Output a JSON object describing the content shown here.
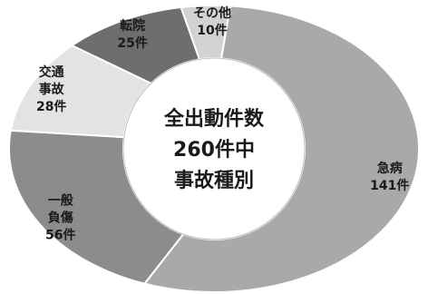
{
  "chart_data": {
    "type": "pie",
    "donut": true,
    "center_lines": [
      "全出動件数",
      "260件中",
      "事故種別"
    ],
    "slices": [
      {
        "category": "急病",
        "value": 141,
        "label_lines": [
          "急病",
          "141件"
        ],
        "color": "#a9a9a9"
      },
      {
        "category": "一般負傷",
        "value": 56,
        "label_lines": [
          "一般",
          "負傷",
          "56件"
        ],
        "color": "#8c8c8c"
      },
      {
        "category": "交通事故",
        "value": 28,
        "label_lines": [
          "交通",
          "事故",
          "28件"
        ],
        "color": "#e3e3e3"
      },
      {
        "category": "転院",
        "value": 25,
        "label_lines": [
          "転院",
          "25件"
        ],
        "color": "#6e6e6e"
      },
      {
        "category": "その他",
        "value": 10,
        "label_lines": [
          "その他",
          "10件"
        ],
        "color": "#d2d2d2"
      }
    ]
  }
}
